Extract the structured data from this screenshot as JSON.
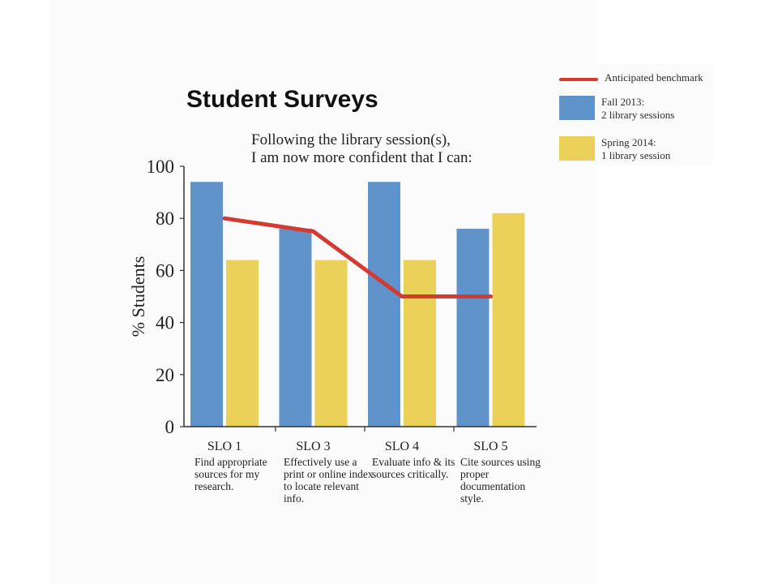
{
  "chart_data": {
    "type": "bar",
    "title": "Student Surveys",
    "subtitle_lines": [
      "Following the library session(s),",
      "I am now more confident that I can:"
    ],
    "ylabel": "% Students",
    "xlabel": "",
    "ylim": [
      0,
      100
    ],
    "yticks": [
      0,
      20,
      40,
      60,
      80,
      100
    ],
    "categories": [
      "SLO 1",
      "SLO 3",
      "SLO 4",
      "SLO 5"
    ],
    "category_descriptions": [
      "Find appropriate sources for my research.",
      "Effectively use a print or online index to locate relevant info.",
      "Evaluate info & its sources critically.",
      "Cite sources using proper documentation style."
    ],
    "series": [
      {
        "name": "Fall 2013: 2 library sessions",
        "color": "#5f93c9",
        "values": [
          94,
          76,
          94,
          76
        ]
      },
      {
        "name": "Spring 2014: 1 library session",
        "color": "#ebd15a",
        "values": [
          64,
          64,
          64,
          82
        ]
      }
    ],
    "benchmark": {
      "name": "Anticipated benchmark",
      "color": "#d23a32",
      "values": [
        80,
        75,
        50,
        50
      ]
    },
    "grid": false,
    "legend_position": "top-right"
  },
  "legend": {
    "benchmark_label": "Anticipated benchmark",
    "fall_line1": "Fall 2013:",
    "fall_line2": "2 library sessions",
    "spring_line1": "Spring 2014:",
    "spring_line2": "1 library session"
  }
}
